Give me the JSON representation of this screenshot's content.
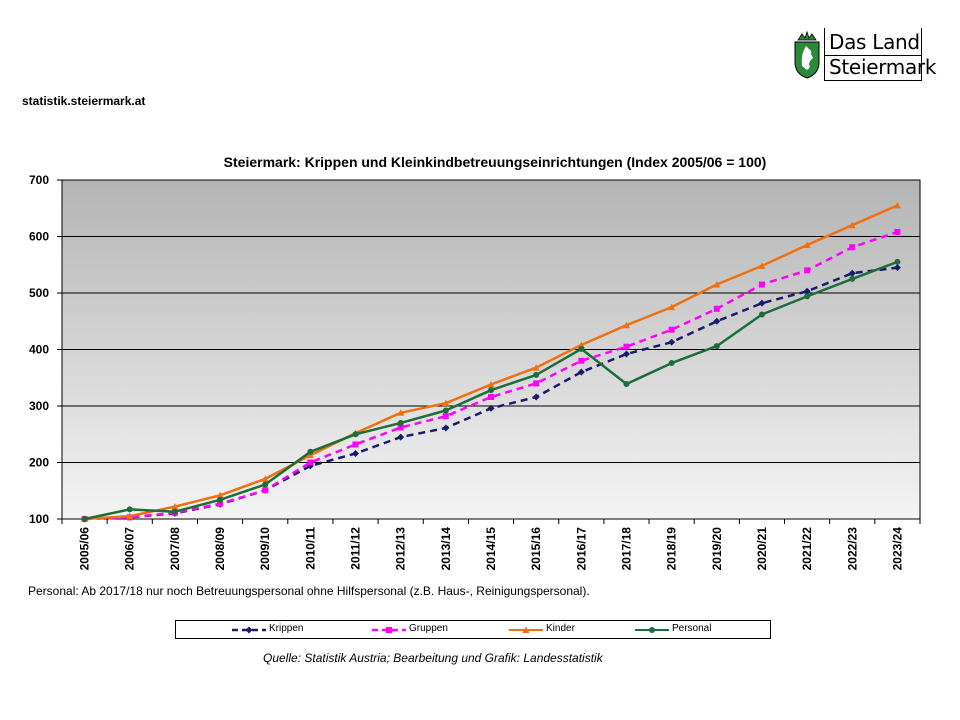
{
  "header": {
    "site": "statistik.steiermark.at",
    "logo": {
      "line1": "Das Land",
      "line2": "Steiermark"
    }
  },
  "chart_data": {
    "type": "line",
    "title": "Steiermark: Krippen und Kleinkindbetreuungseinrichtungen (Index 2005/06 = 100)",
    "xlabel": "",
    "ylabel": "",
    "ylim": [
      100,
      700
    ],
    "yticks": [
      100,
      200,
      300,
      400,
      500,
      600,
      700
    ],
    "grid": true,
    "legend_position": "bottom",
    "categories": [
      "2005/06",
      "2006/07",
      "2007/08",
      "2008/09",
      "2009/10",
      "2010/11",
      "2011/12",
      "2012/13",
      "2013/14",
      "2014/15",
      "2015/16",
      "2016/17",
      "2017/18",
      "2018/19",
      "2019/20",
      "2020/21",
      "2021/22",
      "2022/23",
      "2023/24"
    ],
    "series": [
      {
        "name": "Krippen",
        "color": "#1a1a6e",
        "dash": true,
        "marker": "diamond",
        "values": [
          100,
          103,
          110,
          126,
          151,
          194,
          216,
          245,
          261,
          296,
          316,
          360,
          392,
          413,
          450,
          482,
          503,
          535,
          545
        ]
      },
      {
        "name": "Gruppen",
        "color": "#ff00ff",
        "dash": true,
        "marker": "square",
        "values": [
          100,
          103,
          111,
          127,
          151,
          200,
          232,
          262,
          282,
          316,
          340,
          380,
          405,
          435,
          472,
          515,
          540,
          581,
          608
        ]
      },
      {
        "name": "Kinder",
        "color": "#f07010",
        "dash": false,
        "marker": "triangle",
        "values": [
          100,
          105,
          122,
          142,
          171,
          213,
          252,
          288,
          305,
          338,
          368,
          408,
          443,
          475,
          515,
          548,
          585,
          620,
          655
        ]
      },
      {
        "name": "Personal",
        "color": "#1a6e3a",
        "dash": false,
        "marker": "circle",
        "values": [
          100,
          117,
          113,
          134,
          161,
          219,
          250,
          270,
          292,
          328,
          355,
          401,
          339,
          376,
          406,
          462,
          494,
          525,
          555
        ]
      }
    ]
  },
  "note": "Personal: Ab 2017/18  nur noch Betreuungspersonal ohne Hilfspersonal (z.B. Haus-, Reinigungspersonal).",
  "source": "Quelle: Statistik Austria; Bearbeitung und Grafik: Landesstatistik"
}
